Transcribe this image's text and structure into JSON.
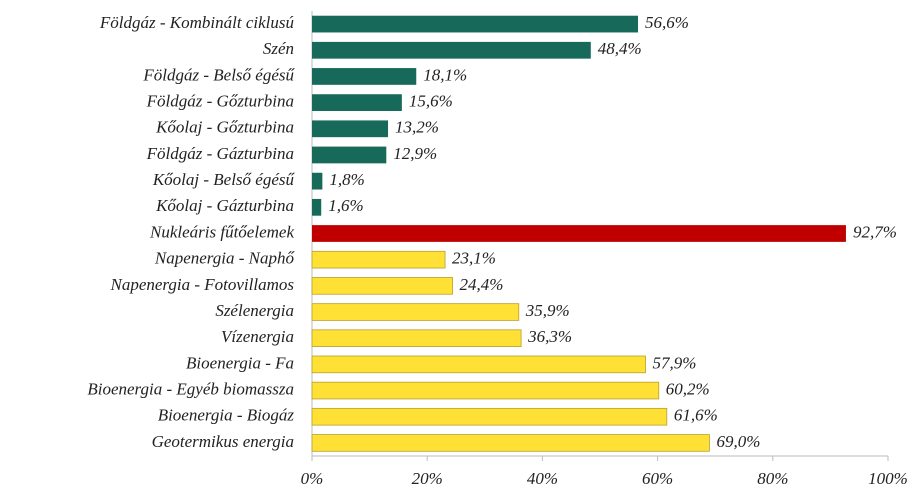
{
  "chart_data": {
    "type": "barh",
    "categories": [
      "Földgáz - Kombinált ciklusú",
      "Szén",
      "Földgáz - Belső égésű",
      "Földgáz - Gőzturbina",
      "Kőolaj - Gőzturbina",
      "Földgáz - Gázturbina",
      "Kőolaj - Belső égésű",
      "Kőolaj - Gázturbina",
      "Nukleáris fűtőelemek",
      "Napenergia - Naphő",
      "Napenergia - Fotovillamos",
      "Szélenergia",
      "Vízenergia",
      "Bioenergia - Fa",
      "Bioenergia - Egyéb biomassza",
      "Bioenergia - Biogáz",
      "Geotermikus energia"
    ],
    "values": [
      56.6,
      48.4,
      18.1,
      15.6,
      13.2,
      12.9,
      1.8,
      1.6,
      92.7,
      23.1,
      24.4,
      35.9,
      36.3,
      57.9,
      60.2,
      61.6,
      69.0
    ],
    "value_labels": [
      "56,6%",
      "48,4%",
      "18,1%",
      "15,6%",
      "13,2%",
      "12,9%",
      "1,8%",
      "1,6%",
      "92,7%",
      "23,1%",
      "24,4%",
      "35,9%",
      "36,3%",
      "57,9%",
      "60,2%",
      "61,6%",
      "69,0%"
    ],
    "colors": [
      "#17695a",
      "#17695a",
      "#17695a",
      "#17695a",
      "#17695a",
      "#17695a",
      "#17695a",
      "#17695a",
      "#c00000",
      "#ffe034",
      "#ffe034",
      "#ffe034",
      "#ffe034",
      "#ffe034",
      "#ffe034",
      "#ffe034",
      "#ffe034"
    ],
    "xlim": [
      0,
      100
    ],
    "xticks": [
      {
        "value": 0,
        "label": "0%"
      },
      {
        "value": 20,
        "label": "20%"
      },
      {
        "value": 40,
        "label": "40%"
      },
      {
        "value": 60,
        "label": "60%"
      },
      {
        "value": 80,
        "label": "80%"
      },
      {
        "value": 100,
        "label": "100%"
      }
    ],
    "grid": false
  }
}
